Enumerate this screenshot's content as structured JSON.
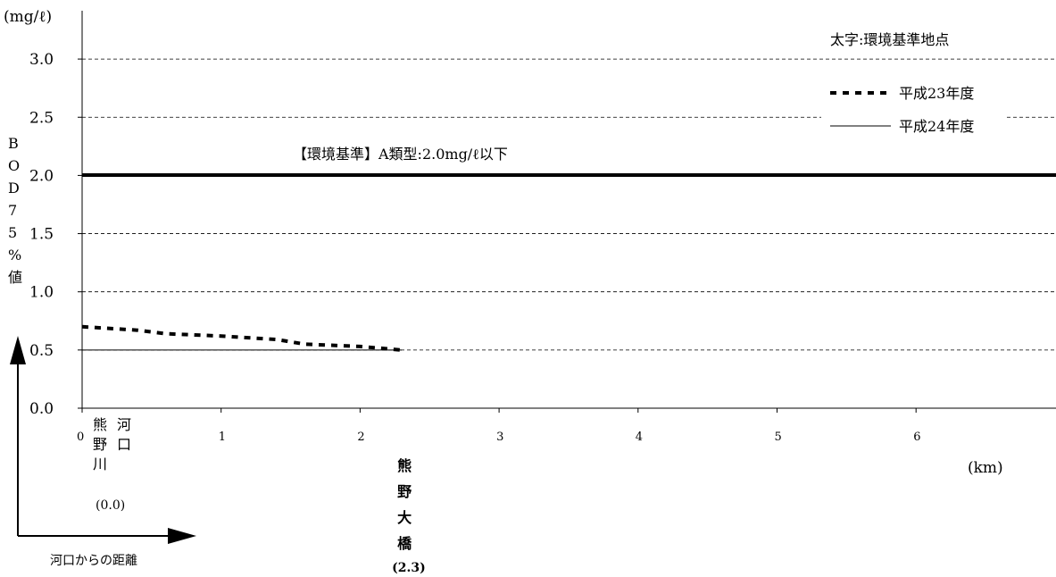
{
  "chart_data": {
    "type": "line",
    "unit_label": "(mg/ℓ)",
    "ylabel_chars": [
      "B",
      "O",
      "D",
      "7",
      "5",
      "%",
      "値"
    ],
    "xunit": "(km)",
    "xlim": [
      0,
      7
    ],
    "ylim": [
      0,
      3.0
    ],
    "yticks": [
      0.0,
      0.5,
      1.0,
      1.5,
      2.0,
      2.5,
      3.0
    ],
    "ytick_labels": [
      "0.0",
      "0.5",
      "1.0",
      "1.5",
      "2.0",
      "2.5",
      "3.0"
    ],
    "xticks": [
      0,
      1,
      2,
      3,
      4,
      5,
      6
    ],
    "xtick_labels": [
      "0",
      "1",
      "2",
      "3",
      "4",
      "5",
      "6"
    ],
    "grid": true,
    "legend_position": "top-right",
    "legend_note": "太字:環境基準地点",
    "standard": {
      "value": 2.0,
      "label": "【環境基準】A類型:2.0mg/ℓ以下"
    },
    "series": [
      {
        "name": "平成23年度",
        "style": "dotted",
        "x": [
          0,
          0.4,
          0.6,
          1.0,
          1.4,
          1.6,
          2.0,
          2.3
        ],
        "y": [
          0.7,
          0.67,
          0.64,
          0.62,
          0.59,
          0.55,
          0.53,
          0.5
        ]
      },
      {
        "name": "平成24年度",
        "style": "solid",
        "x": [
          0,
          2.3
        ],
        "y": [
          0.5,
          0.5
        ]
      }
    ],
    "points": [
      {
        "x": 0,
        "name_chars": [
          "熊",
          "河",
          "野",
          "口",
          "川"
        ],
        "dist": "(0.0)",
        "bold": false
      },
      {
        "x": 2.3,
        "name_chars": [
          "熊",
          "野",
          "大",
          "橋"
        ],
        "dist": "(2.3)",
        "bold": true
      }
    ],
    "arrow_label": "河口からの距離"
  }
}
